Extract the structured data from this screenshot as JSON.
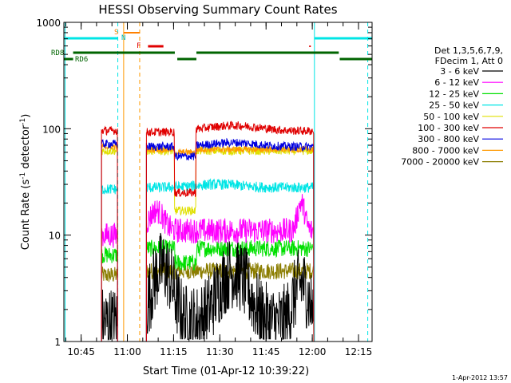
{
  "chart_data": {
    "type": "line",
    "title": "HESSI Observing Summary Count Rates",
    "xlabel": "Start Time (01-Apr-12 10:39:22)",
    "ylabel_main": "Count Rate (s",
    "ylabel_sup1": "-1",
    "ylabel_mid": " detector",
    "ylabel_sup2": "-1",
    "ylabel_end": ")",
    "y_scale": "log",
    "ylim": [
      1,
      1000
    ],
    "xlim_minutes": [
      0,
      100
    ],
    "x_ticks": [
      {
        "label": "10:45",
        "minutes": 5.6
      },
      {
        "label": "11:00",
        "minutes": 20.6
      },
      {
        "label": "11:15",
        "minutes": 35.6
      },
      {
        "label": "11:30",
        "minutes": 50.6
      },
      {
        "label": "11:45",
        "minutes": 65.6
      },
      {
        "label": "12:00",
        "minutes": 80.6
      },
      {
        "label": "12:15",
        "minutes": 95.6
      }
    ],
    "y_ticks": [
      {
        "label": "1",
        "value": 1
      },
      {
        "label": "10",
        "value": 10
      },
      {
        "label": "100",
        "value": 100
      },
      {
        "label": "1000",
        "value": 1000
      }
    ],
    "legend_placement": "right",
    "legend_header": [
      "Det 1,3,5,6,7,9,",
      "FDecim 1, Att 0"
    ],
    "series": [
      {
        "name": "3 - 6 keV",
        "color": "#000000"
      },
      {
        "name": "6 - 12 keV",
        "color": "#ff00ff"
      },
      {
        "name": "12 - 25 keV",
        "color": "#00e000"
      },
      {
        "name": "25 - 50 keV",
        "color": "#00e5e5"
      },
      {
        "name": "50 - 100 keV",
        "color": "#e0e000"
      },
      {
        "name": "100 - 300 keV",
        "color": "#e00000"
      },
      {
        "name": "300 - 800 keV",
        "color": "#0000e0"
      },
      {
        "name": "800 - 7000 keV",
        "color": "#ff9900"
      },
      {
        "name": "7000 - 20000 keV",
        "color": "#8b7d00"
      }
    ],
    "annotations": [
      {
        "label": "S",
        "color": "#ff8000"
      },
      {
        "label": "N",
        "color": "#00bfbf"
      },
      {
        "label": "F",
        "color": "#e00000"
      },
      {
        "label": "RD8",
        "color": "#006400"
      },
      {
        "label": "RD6",
        "color": "#006400"
      }
    ],
    "timestamp": "1-Apr-2012 13:57"
  }
}
